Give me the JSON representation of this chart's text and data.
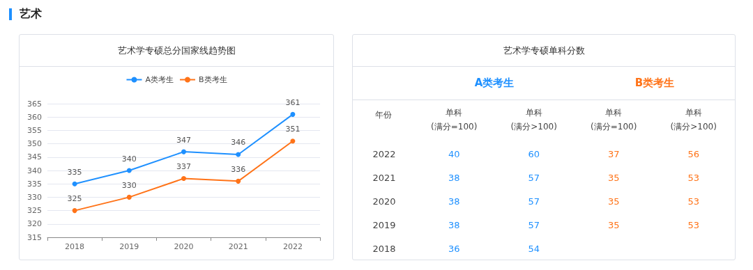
{
  "chart_data": [
    {
      "type": "line",
      "title": "艺术学专硕总分国家线趋势图",
      "annotations": [
        "艺术"
      ],
      "categories": [
        "2018",
        "2019",
        "2020",
        "2021",
        "2022"
      ],
      "series": [
        {
          "name": "A类考生",
          "color": "#1e90ff",
          "values": [
            335,
            340,
            347,
            346,
            361
          ]
        },
        {
          "name": "B类考生",
          "color": "#ff7318",
          "values": [
            325,
            330,
            337,
            336,
            351
          ]
        }
      ],
      "ylim": [
        315,
        365
      ],
      "yticks": [
        315,
        320,
        325,
        330,
        335,
        340,
        345,
        350,
        355,
        360,
        365
      ],
      "grid": "y",
      "legend": "top",
      "marker": "circle",
      "line_style": "solid",
      "data_labels": true
    },
    {
      "type": "heatmap",
      "title": "艺术学专硕单科分数",
      "annotations": [
        "年份",
        "A类考生",
        "B类考生"
      ],
      "colors": [
        "#1e90ff",
        "#1e90ff",
        "#ff7318",
        "#ff7318"
      ],
      "categories": [
        "单科\n(满分=100)",
        "单科\n(满分>100)",
        "单科\n(满分=100)",
        "单科\n(满分>100)"
      ],
      "y_categories": [
        "2022",
        "2021",
        "2020",
        "2019",
        "2018"
      ],
      "data_labels": true,
      "cells": [
        [
          40,
          60,
          37,
          56
        ],
        [
          38,
          57,
          35,
          53
        ],
        [
          38,
          57,
          35,
          53
        ],
        [
          38,
          57,
          35,
          53
        ],
        [
          36,
          54,
          null,
          null
        ]
      ]
    }
  ]
}
